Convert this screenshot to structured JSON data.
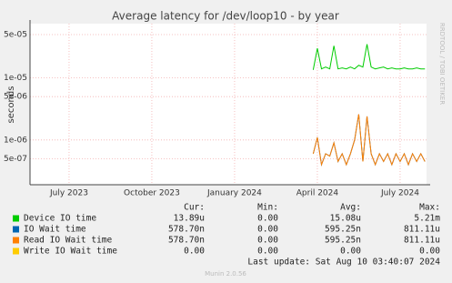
{
  "chart_data": {
    "type": "line",
    "title": "Average latency for /dev/loop10 - by year",
    "y_label": "seconds",
    "side_label": "RRDTOOL / TOBI OETIKER",
    "log_scale": true,
    "grid": true,
    "categories": [
      null,
      null,
      null,
      null,
      null,
      null,
      null,
      null,
      null,
      "July 2023",
      null,
      null,
      null,
      null,
      null,
      null,
      null,
      null,
      null,
      null,
      null,
      null,
      null,
      null,
      null,
      null,
      null,
      null,
      null,
      "October 2023",
      null,
      null,
      null,
      null,
      null,
      null,
      null,
      null,
      null,
      null,
      null,
      null,
      null,
      null,
      null,
      null,
      null,
      null,
      null,
      "January 2024",
      null,
      null,
      null,
      null,
      null,
      null,
      null,
      null,
      null,
      null,
      null,
      null,
      null,
      null,
      null,
      null,
      null,
      null,
      null,
      "April 2024",
      null,
      null,
      null,
      null,
      null,
      null,
      null,
      null,
      null,
      null,
      null,
      null,
      null,
      null,
      null,
      null,
      null,
      null,
      null,
      "July 2024",
      null,
      null,
      null,
      null,
      null,
      null
    ],
    "ylim": [
      1.9e-07,
      7.5e-05
    ],
    "yticks": [
      {
        "value": 5e-07,
        "label": "5e-07"
      },
      {
        "value": 1e-06,
        "label": "1e-06"
      },
      {
        "value": 5e-06,
        "label": "5e-06"
      },
      {
        "value": 1e-05,
        "label": "1e-05"
      },
      {
        "value": 5e-05,
        "label": "5e-05"
      }
    ],
    "series": [
      {
        "name": "Device IO time",
        "color": "#00cc00",
        "values": [
          null,
          null,
          null,
          null,
          null,
          null,
          null,
          null,
          null,
          null,
          null,
          null,
          null,
          null,
          null,
          null,
          null,
          null,
          null,
          null,
          null,
          null,
          null,
          null,
          null,
          null,
          null,
          null,
          null,
          null,
          null,
          null,
          null,
          null,
          null,
          null,
          null,
          null,
          null,
          null,
          null,
          null,
          null,
          null,
          null,
          null,
          null,
          null,
          null,
          null,
          null,
          null,
          null,
          null,
          null,
          null,
          null,
          null,
          null,
          null,
          null,
          null,
          null,
          null,
          null,
          null,
          null,
          null,
          1.35e-05,
          3e-05,
          1.4e-05,
          1.5e-05,
          1.4e-05,
          3.3e-05,
          1.4e-05,
          1.45e-05,
          1.4e-05,
          1.5e-05,
          1.4e-05,
          1.6e-05,
          1.5e-05,
          3.5e-05,
          1.5e-05,
          1.4e-05,
          1.45e-05,
          1.5e-05,
          1.4e-05,
          1.45e-05,
          1.4e-05,
          1.4e-05,
          1.45e-05,
          1.4e-05,
          1.4e-05,
          1.45e-05,
          1.4e-05,
          1.4e-05
        ]
      },
      {
        "name": "IO Wait time",
        "color": "#0066b3",
        "values": [
          null,
          null,
          null,
          null,
          null,
          null,
          null,
          null,
          null,
          null,
          null,
          null,
          null,
          null,
          null,
          null,
          null,
          null,
          null,
          null,
          null,
          null,
          null,
          null,
          null,
          null,
          null,
          null,
          null,
          null,
          null,
          null,
          null,
          null,
          null,
          null,
          null,
          null,
          null,
          null,
          null,
          null,
          null,
          null,
          null,
          null,
          null,
          null,
          null,
          null,
          null,
          null,
          null,
          null,
          null,
          null,
          null,
          null,
          null,
          null,
          null,
          null,
          null,
          null,
          null,
          null,
          null,
          null,
          6e-07,
          1.1e-06,
          4e-07,
          6e-07,
          5.5e-07,
          9e-07,
          4.5e-07,
          6e-07,
          4e-07,
          6e-07,
          1e-06,
          2.6e-06,
          4.5e-07,
          2.4e-06,
          6e-07,
          4e-07,
          6e-07,
          4.5e-07,
          6e-07,
          4e-07,
          6e-07,
          4.5e-07,
          6e-07,
          4e-07,
          6e-07,
          4.5e-07,
          6e-07,
          4.5e-07
        ]
      },
      {
        "name": "Read IO Wait time",
        "color": "#ff8000",
        "values": [
          null,
          null,
          null,
          null,
          null,
          null,
          null,
          null,
          null,
          null,
          null,
          null,
          null,
          null,
          null,
          null,
          null,
          null,
          null,
          null,
          null,
          null,
          null,
          null,
          null,
          null,
          null,
          null,
          null,
          null,
          null,
          null,
          null,
          null,
          null,
          null,
          null,
          null,
          null,
          null,
          null,
          null,
          null,
          null,
          null,
          null,
          null,
          null,
          null,
          null,
          null,
          null,
          null,
          null,
          null,
          null,
          null,
          null,
          null,
          null,
          null,
          null,
          null,
          null,
          null,
          null,
          null,
          null,
          6e-07,
          1.1e-06,
          4e-07,
          6e-07,
          5.5e-07,
          9e-07,
          4.5e-07,
          6e-07,
          4e-07,
          6e-07,
          1e-06,
          2.6e-06,
          4.5e-07,
          2.4e-06,
          6e-07,
          4e-07,
          6e-07,
          4.5e-07,
          6e-07,
          4e-07,
          6e-07,
          4.5e-07,
          6e-07,
          4e-07,
          6e-07,
          4.5e-07,
          6e-07,
          4.5e-07
        ]
      },
      {
        "name": "Write IO Wait time",
        "color": "#ffcc00"
      }
    ],
    "legend_table": {
      "headers": [
        "Cur:",
        "Min:",
        "Avg:",
        "Max:"
      ],
      "rows": [
        [
          "13.89u",
          "0.00",
          "15.08u",
          "5.21m"
        ],
        [
          "578.70n",
          "0.00",
          "595.25n",
          "811.11u"
        ],
        [
          "578.70n",
          "0.00",
          "595.25n",
          "811.11u"
        ],
        [
          "0.00",
          "0.00",
          "0.00",
          "0.00"
        ]
      ]
    },
    "last_update": "Last update: Sat Aug 10 03:40:07 2024",
    "footer": "Munin 2.0.56"
  }
}
